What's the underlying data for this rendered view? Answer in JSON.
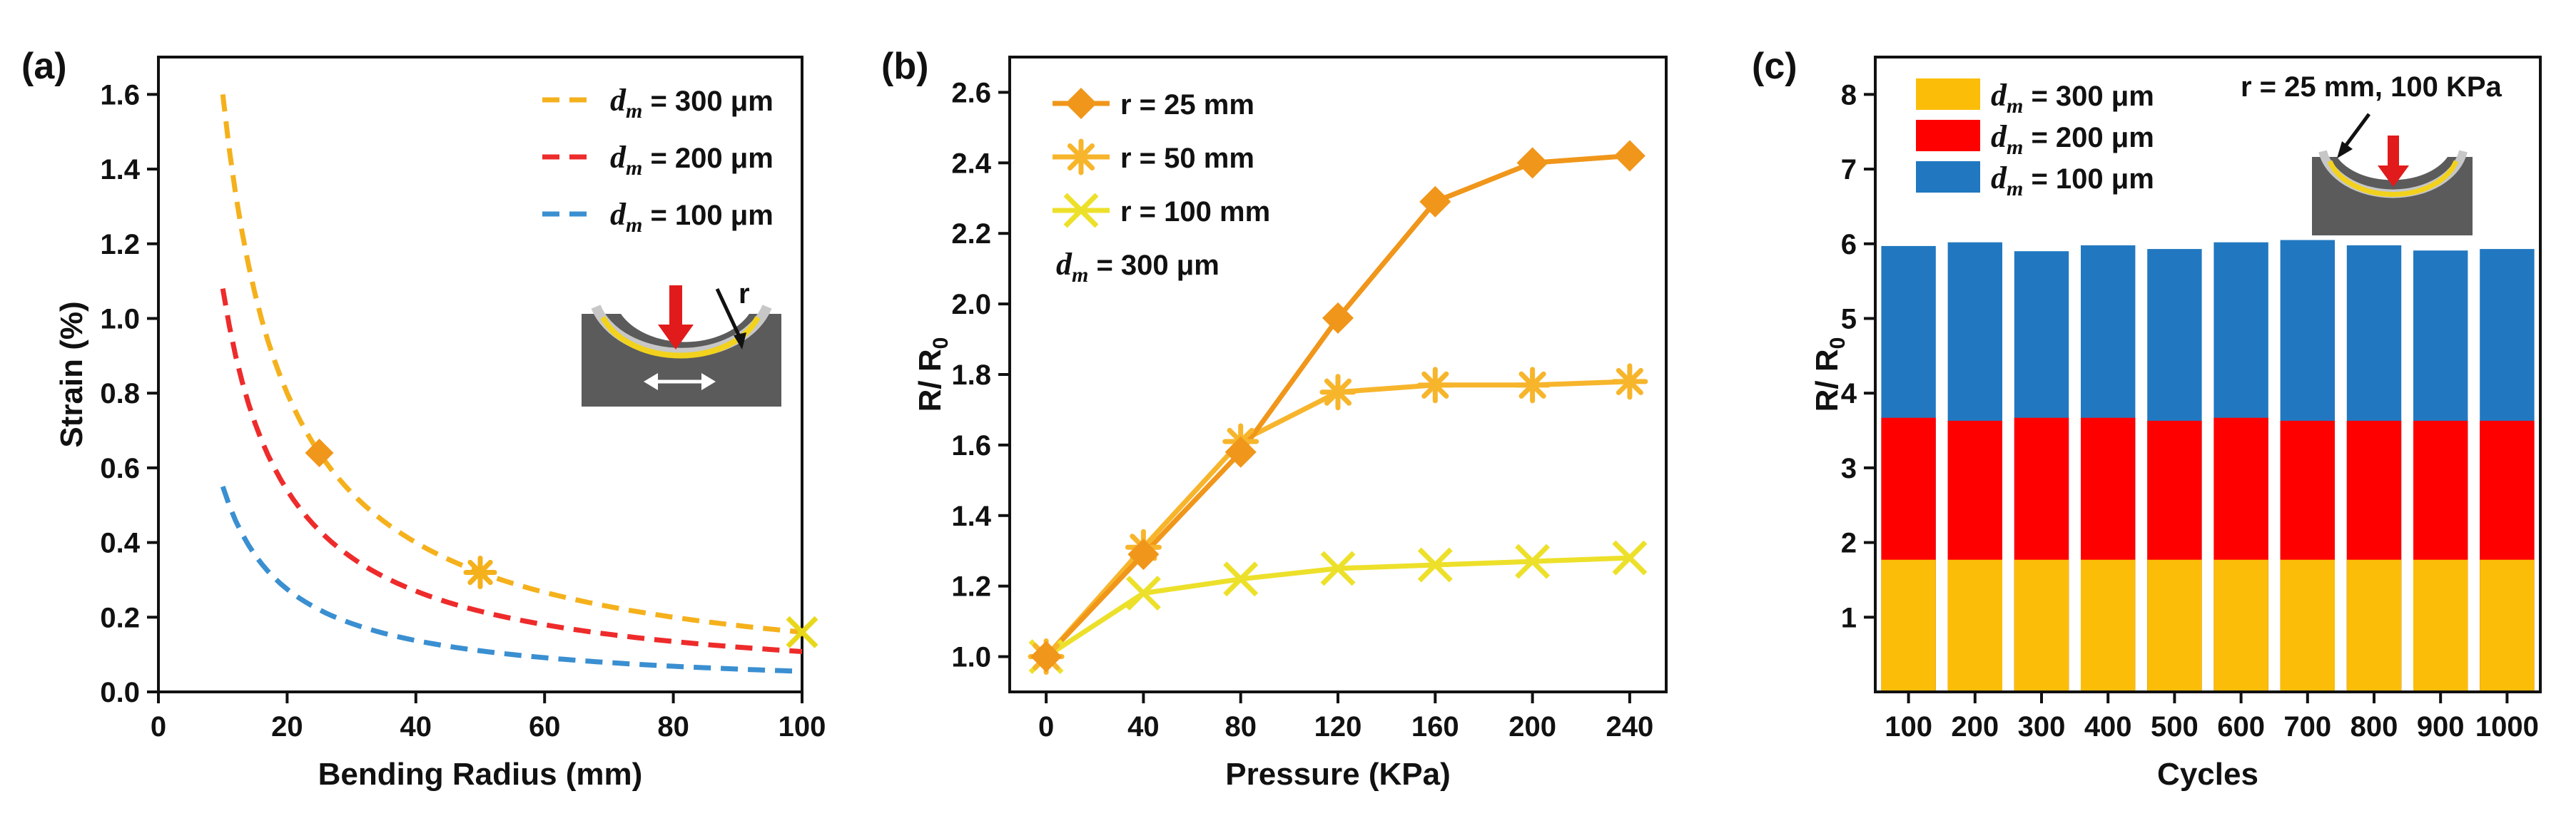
{
  "panels": {
    "a": {
      "label": "(a)"
    },
    "b": {
      "label": "(b)"
    },
    "c": {
      "label": "(c)"
    }
  },
  "chart_data": [
    {
      "id": "a",
      "type": "line",
      "style": "dashed",
      "xlabel": "Bending Radius (mm)",
      "ylabel": "Strain (%)",
      "xlim": [
        0,
        100
      ],
      "ylim": [
        0,
        1.7
      ],
      "xticks": [
        0,
        20,
        40,
        60,
        80,
        100
      ],
      "yticks": [
        0.0,
        0.2,
        0.4,
        0.6,
        0.8,
        1.0,
        1.2,
        1.4,
        1.6
      ],
      "legend_position": "top-right",
      "series": [
        {
          "name": "d_m = 300 μm",
          "sub": "m",
          "value_text": " = 300 μm",
          "color": "#f5b11c",
          "k": 16.0
        },
        {
          "name": "d_m = 200 μm",
          "sub": "m",
          "value_text": " = 200 μm",
          "color": "#ee2b2b",
          "k": 10.8
        },
        {
          "name": "d_m = 100 μm",
          "sub": "m",
          "value_text": " = 100 μm",
          "color": "#3a8fd1",
          "k": 5.5
        }
      ],
      "x_range": [
        10,
        100
      ],
      "markers": [
        {
          "x": 25,
          "y": 0.64,
          "shape": "diamond",
          "color": "#f0961a"
        },
        {
          "x": 50,
          "y": 0.32,
          "shape": "star",
          "color": "#f5b11c"
        },
        {
          "x": 100,
          "y": 0.16,
          "shape": "cross",
          "color": "#e8d81c"
        }
      ],
      "inset": {
        "label": "r"
      }
    },
    {
      "id": "b",
      "type": "line",
      "xlabel": "Pressure (KPa)",
      "ylabel_main": "R/ R",
      "ylabel_sub": "0",
      "xlim": [
        -15,
        255
      ],
      "ylim": [
        0.9,
        2.7
      ],
      "xticks": [
        0,
        40,
        80,
        120,
        160,
        200,
        240
      ],
      "yticks": [
        1.0,
        1.2,
        1.4,
        1.6,
        1.8,
        2.0,
        2.2,
        2.4,
        2.6
      ],
      "x": [
        0,
        40,
        80,
        120,
        160,
        200,
        240
      ],
      "legend_position": "top-left",
      "series": [
        {
          "name": "r = 25 mm",
          "marker": "diamond",
          "color": "#f0961a",
          "values": [
            1.0,
            1.29,
            1.58,
            1.96,
            2.29,
            2.4,
            2.42
          ]
        },
        {
          "name": "r = 50 mm",
          "marker": "star",
          "color": "#f7b52c",
          "values": [
            1.0,
            1.31,
            1.61,
            1.75,
            1.77,
            1.77,
            1.78
          ]
        },
        {
          "name": "r = 100 mm",
          "marker": "cross",
          "color": "#ede02a",
          "values": [
            1.0,
            1.18,
            1.22,
            1.25,
            1.26,
            1.27,
            1.28
          ]
        }
      ],
      "annotation_sub": "m",
      "annotation_text": " = 300 μm"
    },
    {
      "id": "c",
      "type": "bar",
      "stacked": false,
      "xlabel": "Cycles",
      "ylabel_main": "R/ R",
      "ylabel_sub": "0",
      "ylim": [
        0,
        8.5
      ],
      "yticks": [
        1,
        2,
        3,
        4,
        5,
        6,
        7,
        8
      ],
      "categories": [
        "100",
        "200",
        "300",
        "400",
        "500",
        "600",
        "700",
        "800",
        "900",
        "1000"
      ],
      "legend_position": "top-left",
      "series": [
        {
          "name": "d_m = 100 μm",
          "sub": "m",
          "value_text": " = 100 μm",
          "color": "#2178c0",
          "values": [
            5.97,
            6.02,
            5.9,
            5.98,
            5.93,
            6.02,
            6.05,
            5.98,
            5.91,
            5.93
          ]
        },
        {
          "name": "d_m = 200 μm",
          "sub": "m",
          "value_text": " = 200 μm",
          "color": "#ff0000",
          "values": [
            3.67,
            3.63,
            3.67,
            3.67,
            3.63,
            3.67,
            3.63,
            3.63,
            3.63,
            3.63
          ]
        },
        {
          "name": "d_m = 300 μm",
          "sub": "m",
          "value_text": " = 300 μm",
          "color": "#fbbd08",
          "values": [
            1.77,
            1.77,
            1.77,
            1.77,
            1.77,
            1.77,
            1.77,
            1.77,
            1.77,
            1.77
          ]
        }
      ],
      "legend_order": [
        2,
        1,
        0
      ],
      "annotation": "r = 25 mm, 100 KPa"
    }
  ]
}
